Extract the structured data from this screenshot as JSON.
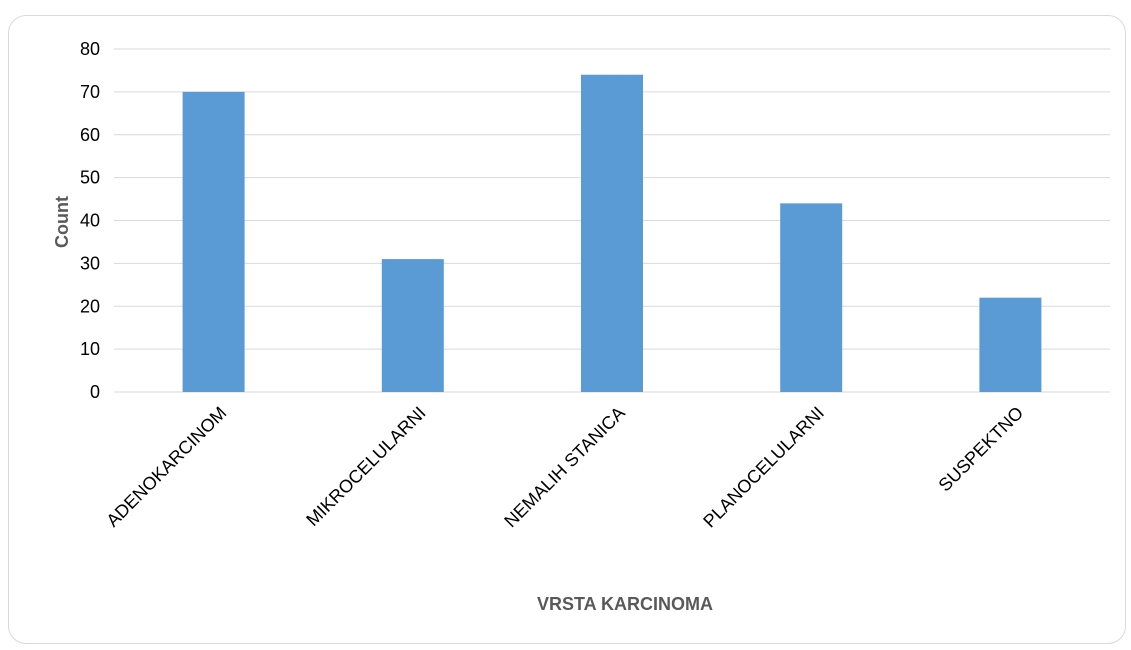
{
  "chart_data": {
    "type": "bar",
    "title": "",
    "xlabel": "VRSTA KARCINOMA",
    "ylabel": "Count",
    "categories": [
      "ADENOKARCINOM",
      "MIKROCELULARNI",
      "NEMALIH STANICA",
      "PLANOCELULARNI",
      "SUSPEKTNO"
    ],
    "values": [
      70,
      31,
      74,
      44,
      22
    ],
    "ylim": [
      0,
      80
    ],
    "yticks": [
      0,
      10,
      20,
      30,
      40,
      50,
      60,
      70,
      80
    ],
    "grid": true,
    "legend": "none",
    "bar_color": "#5b9bd5",
    "grid_color": "#d9d9d9"
  }
}
